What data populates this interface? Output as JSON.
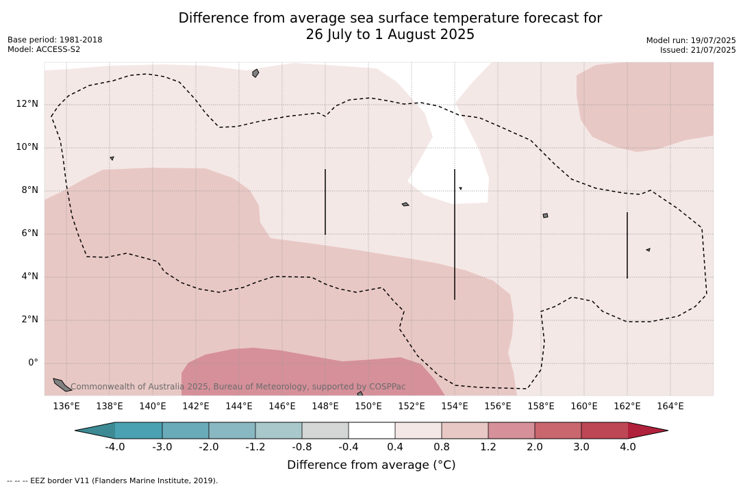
{
  "title": {
    "line1": "Difference from average sea surface temperature forecast for",
    "line2": "26 July to 1 August 2025"
  },
  "meta_left": {
    "base_period": "Base period: 1981-2018",
    "model": "Model: ACCESS-S2"
  },
  "meta_right": {
    "model_run": "Model run: 19/07/2025",
    "issued": "Issued: 21/07/2025"
  },
  "map": {
    "lon_range": [
      135,
      166
    ],
    "lat_range": [
      -1.5,
      14
    ],
    "lon_ticks": [
      "136°E",
      "138°E",
      "140°E",
      "142°E",
      "144°E",
      "146°E",
      "148°E",
      "150°E",
      "152°E",
      "154°E",
      "156°E",
      "158°E",
      "160°E",
      "162°E",
      "164°E"
    ],
    "lat_ticks": [
      "12°N",
      "10°N",
      "8°N",
      "6°N",
      "4°N",
      "2°N",
      "0°"
    ],
    "copyright": "Commonwealth of Australia 2025, Bureau of Meteorology, supported by COSPPac",
    "colors": {
      "anom_0_4_0_8": "#f4e8e6",
      "anom_0_8_1_2": "#e8c8c5",
      "anom_1_2_2_0": "#d6909a",
      "neutral": "#ffffff",
      "eez_line": "#000000",
      "land": "#808080"
    }
  },
  "colorbar": {
    "title": "Difference from average (°C)",
    "labels": [
      "-4.0",
      "-3.0",
      "-2.0",
      "-1.2",
      "-0.8",
      "-0.4",
      "0.4",
      "0.8",
      "1.2",
      "2.0",
      "3.0",
      "4.0"
    ],
    "colors": [
      "#3d8a94",
      "#4aa1b2",
      "#6aabba",
      "#89b7c2",
      "#a9c8cc",
      "#d4d6d6",
      "#ffffff",
      "#f4e8e6",
      "#e8c8c5",
      "#d6909a",
      "#c9666e",
      "#bd4755",
      "#b0213b"
    ]
  },
  "footer": "--  --  -- EEZ border V11 (Flanders Marine Institute, 2019)."
}
